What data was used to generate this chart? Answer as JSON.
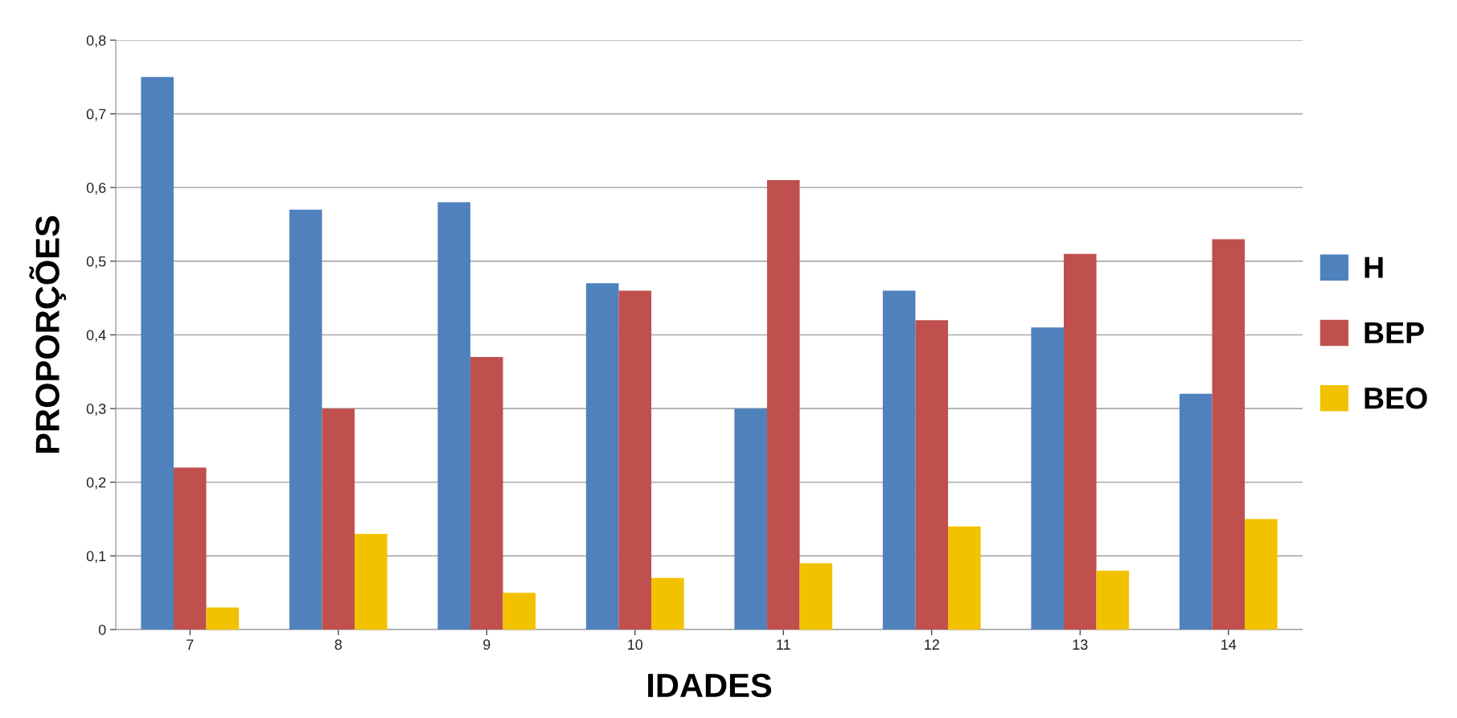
{
  "chart_data": {
    "type": "bar",
    "xlabel": "IDADES",
    "ylabel": "PROPORÇÕES",
    "categories": [
      "7",
      "8",
      "9",
      "10",
      "11",
      "12",
      "13",
      "14"
    ],
    "series": [
      {
        "name": "H",
        "color": "#4f81bd",
        "values": [
          0.75,
          0.57,
          0.58,
          0.47,
          0.3,
          0.46,
          0.41,
          0.32
        ]
      },
      {
        "name": "BEP",
        "color": "#c0504d",
        "values": [
          0.22,
          0.3,
          0.37,
          0.46,
          0.61,
          0.42,
          0.51,
          0.53
        ]
      },
      {
        "name": "BEO",
        "color": "#f2c200",
        "values": [
          0.03,
          0.13,
          0.05,
          0.07,
          0.09,
          0.14,
          0.08,
          0.15
        ]
      }
    ],
    "ylim": [
      0,
      0.8
    ],
    "yticks": [
      0,
      {
        "value": 0.1,
        "label": "0,1"
      },
      {
        "value": 0.2,
        "label": "0,2"
      },
      {
        "value": 0.3,
        "label": "0,3"
      },
      {
        "value": 0.4,
        "label": "0,4"
      },
      {
        "value": 0.5,
        "label": "0,5"
      },
      {
        "value": 0.6,
        "label": "0,6"
      },
      {
        "value": 0.7,
        "label": "0,7"
      },
      {
        "value": 0.8,
        "label": "0,8"
      }
    ],
    "grid": "y",
    "legend": "right"
  }
}
